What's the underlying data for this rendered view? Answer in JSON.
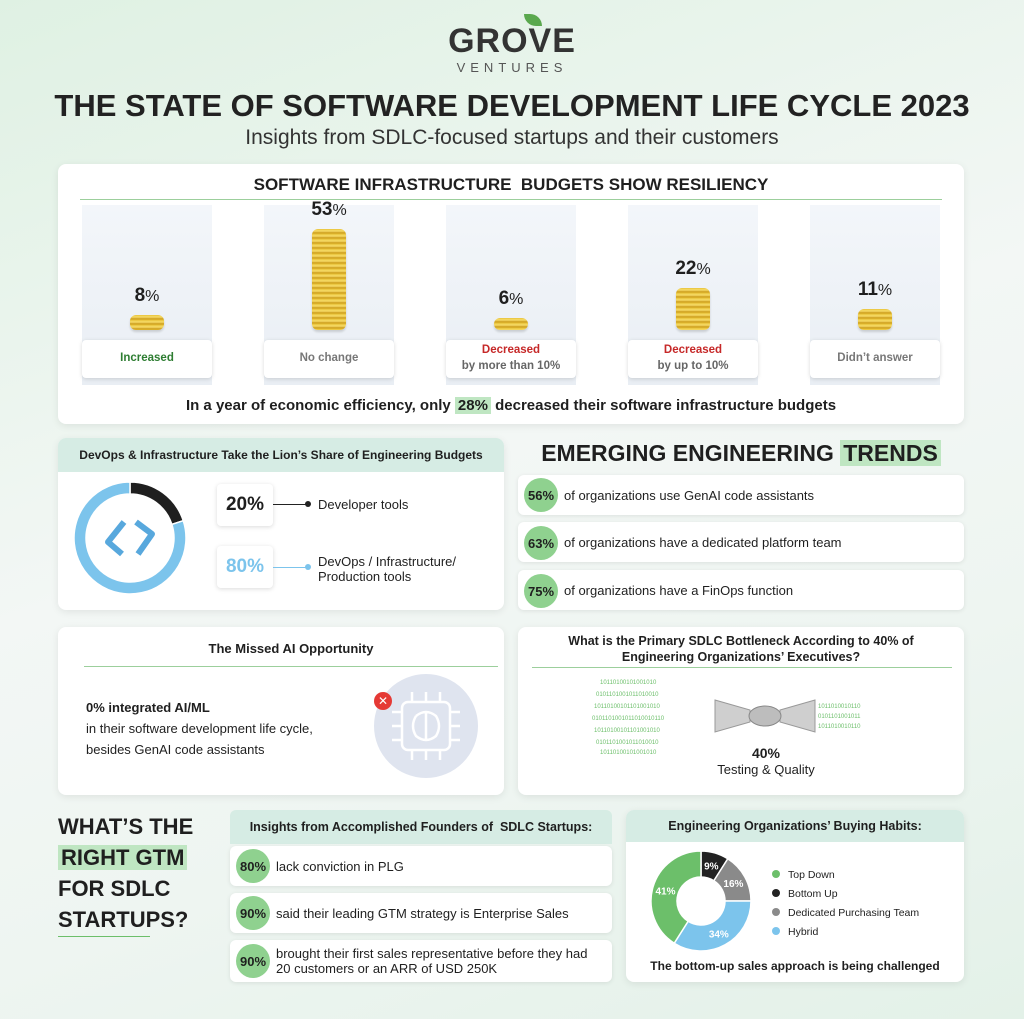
{
  "brand": {
    "name": "GROVE",
    "sub": "VENTURES"
  },
  "title": "THE STATE OF SOFTWARE DEVELOPMENT LIFE CYCLE 2023",
  "subtitle": "Insights from SDLC-focused startups and their customers",
  "budget_section": {
    "heading": "SOFTWARE INFRASTRUCTURE  BUDGETS SHOW RESILIENCY",
    "conclusion_pre": "In a year of economic efficiency, only ",
    "conclusion_hl": "28%",
    "conclusion_post": " decreased their software infrastructure budgets"
  },
  "chart_data": [
    {
      "type": "bar",
      "title": "SOFTWARE INFRASTRUCTURE  BUDGETS SHOW RESILIENCY",
      "categories": [
        "Increased",
        "No change",
        "Decreased by more than 10%",
        "Decreased by up to 10%",
        "Didn't answer"
      ],
      "values": [
        8,
        53,
        6,
        22,
        11
      ],
      "value_labels": [
        "8",
        "53",
        "6",
        "22",
        "11"
      ],
      "unit": "%",
      "category_lines": [
        [
          "Increased",
          ""
        ],
        [
          "No change",
          ""
        ],
        [
          "Decreased",
          "by more than 10%"
        ],
        [
          "Decreased",
          "by up to 10%"
        ],
        [
          "Didn’t answer",
          ""
        ]
      ],
      "colors": [
        "#2e7d32",
        "#777777",
        "#c62828",
        "#c62828",
        "#777777"
      ]
    },
    {
      "type": "pie",
      "title": "DevOps & Infrastructure Take the Lion’s Share of Engineering Budgets",
      "labels": [
        "Developer tools",
        "DevOps / Infrastructure/ Production tools"
      ],
      "values": [
        20,
        80
      ],
      "value_labels": [
        "20%",
        "80%"
      ],
      "colors": [
        "#1f1f1f",
        "#7cc4ec"
      ]
    },
    {
      "type": "pie",
      "title": "Engineering Organizations’ Buying Habits:",
      "labels": [
        "Top Down",
        "Bottom Up",
        "Dedicated Purchasing Team",
        "Hybrid"
      ],
      "values": [
        41,
        9,
        16,
        34
      ],
      "value_labels": [
        "41%",
        "9%",
        "16%",
        "34%"
      ],
      "colors": [
        "#6cbf6a",
        "#222222",
        "#8a8a8a",
        "#7cc4ec"
      ]
    }
  ],
  "devops": {
    "heading": "DevOps & Infrastructure Take the Lion’s Share of Engineering Budgets",
    "label_1": "Developer tools",
    "label_2a": "DevOps / Infrastructure/",
    "label_2b": "Production tools"
  },
  "trends": {
    "heading_pre": "EMERGING ENGINEERING ",
    "heading_hl": "TRENDS",
    "items": [
      {
        "pct": "56%",
        "text": "of organizations use GenAI code assistants"
      },
      {
        "pct": "63%",
        "text": "of organizations have a dedicated platform team"
      },
      {
        "pct": "75%",
        "text": "of organizations have a FinOps function"
      }
    ]
  },
  "missed_ai": {
    "heading": "The Missed AI Opportunity",
    "line1": "0% integrated AI/ML",
    "line2": "in their software development life cycle,",
    "line3": "besides GenAI code assistants"
  },
  "bottleneck": {
    "heading1": "What is the Primary SDLC Bottleneck According to 40% of",
    "heading2": "Engineering Organizations’ Executives?",
    "pct": "40%",
    "label": "Testing & Quality"
  },
  "gtm": {
    "lines": [
      "WHAT’S THE",
      "RIGHT GTM",
      "FOR SDLC",
      "STARTUPS?"
    ],
    "insights_heading": "Insights from Accomplished Founders of  SDLC Startups:",
    "items": [
      {
        "pct": "80%",
        "text": "lack conviction in PLG"
      },
      {
        "pct": "90%",
        "text": "said their leading GTM strategy is Enterprise Sales"
      },
      {
        "pct": "90%",
        "text": "brought their first sales representative before they had",
        "text2": "20 customers or an ARR of USD 250K"
      }
    ]
  },
  "buying": {
    "heading": "Engineering Organizations’ Buying Habits:",
    "footer": "The bottom-up sales approach is being challenged"
  }
}
